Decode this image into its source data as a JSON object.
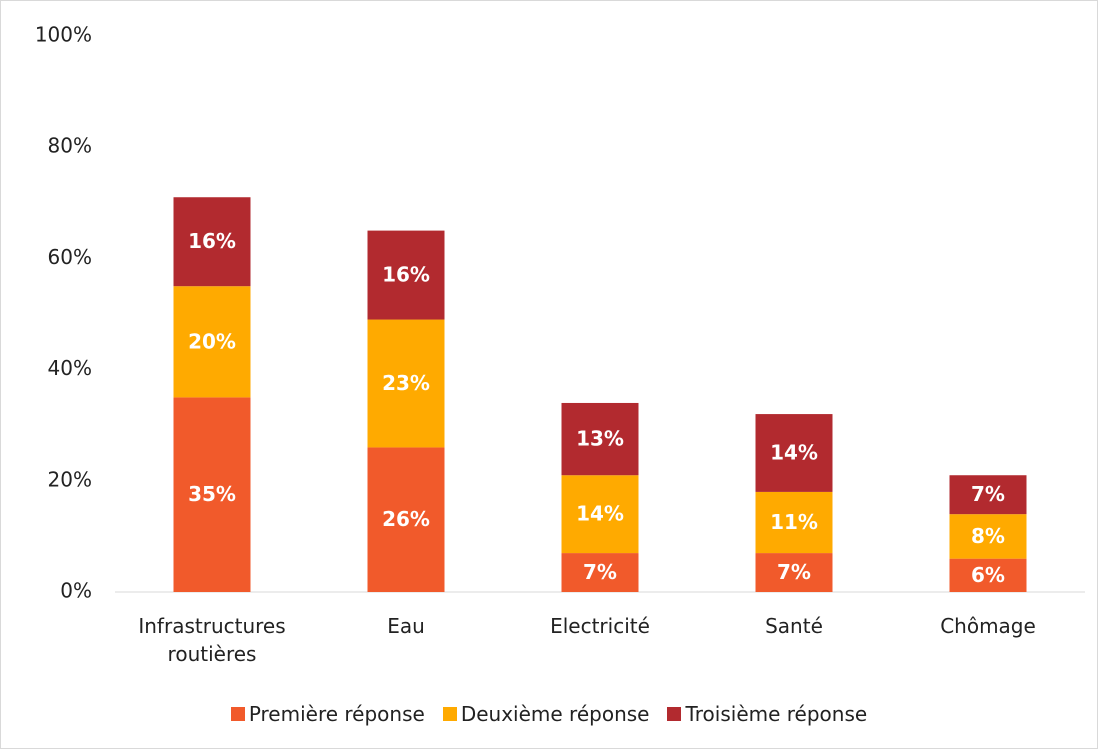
{
  "chart_data": {
    "type": "stacked_bar",
    "categories": [
      "Infrastructures routières",
      "Eau",
      "Electricité",
      "Santé",
      "Chômage"
    ],
    "series": [
      {
        "name": "Première réponse",
        "color": "#f15a2b",
        "values": [
          35,
          26,
          7,
          7,
          6
        ],
        "value_labels": [
          "35%",
          "26%",
          "7%",
          "7%",
          "6%"
        ]
      },
      {
        "name": "Deuxième réponse",
        "color": "#ffaa00",
        "values": [
          20,
          23,
          14,
          11,
          8
        ],
        "value_labels": [
          "20%",
          "23%",
          "14%",
          "11%",
          "8%"
        ]
      },
      {
        "name": "Troisième réponse",
        "color": "#b22a2f",
        "values": [
          16,
          16,
          13,
          14,
          7
        ],
        "value_labels": [
          "16%",
          "16%",
          "13%",
          "14%",
          "7%"
        ]
      }
    ],
    "ylim": [
      0,
      100
    ],
    "yticks": [
      {
        "value": 0,
        "label": "0%"
      },
      {
        "value": 20,
        "label": "20%"
      },
      {
        "value": 40,
        "label": "40%"
      },
      {
        "value": 60,
        "label": "60%"
      },
      {
        "value": 80,
        "label": "80%"
      },
      {
        "value": 100,
        "label": "100%"
      }
    ],
    "grid": false,
    "legend": "bottom"
  }
}
